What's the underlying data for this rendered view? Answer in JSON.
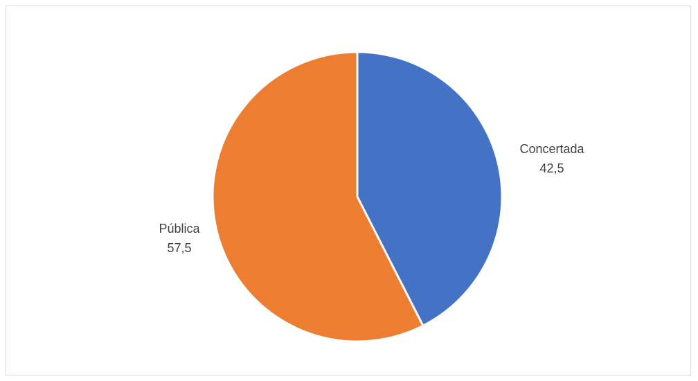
{
  "chart_data": {
    "type": "pie",
    "title": "",
    "slices": [
      {
        "name": "Concertada",
        "value_label": "42,5",
        "value": 42.5,
        "color": "#4472c4"
      },
      {
        "name": "Pública",
        "value_label": "57,5",
        "value": 57.5,
        "color": "#ed7d31"
      }
    ],
    "legend": "none",
    "start_angle": "top",
    "direction": "clockwise"
  }
}
